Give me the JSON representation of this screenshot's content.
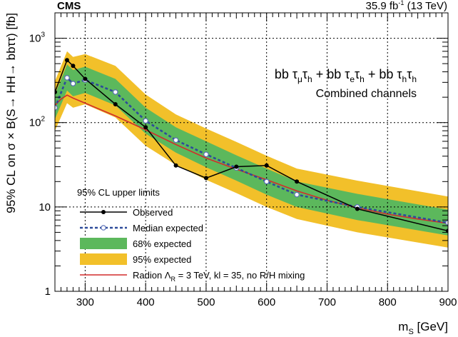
{
  "header": {
    "experiment": "CMS",
    "lumi": "35.9 fb",
    "lumi_sup": "-1",
    "energy": " (13 TeV)"
  },
  "chart_data": {
    "type": "line",
    "xlabel": "m",
    "xlabel_sub": "S",
    "xlabel_unit": " [GeV]",
    "ylabel": "95% CL on σ × B(S→ HH→ bbττ) [fb]",
    "xlim": [
      250,
      900
    ],
    "ylim": [
      1,
      2000
    ],
    "yscale": "log",
    "grid": true,
    "x_ticks": [
      300,
      400,
      500,
      600,
      700,
      800,
      900
    ],
    "y_ticks": [
      {
        "value": 1,
        "base": "1",
        "exp": ""
      },
      {
        "value": 10,
        "base": "10",
        "exp": ""
      },
      {
        "value": 100,
        "base": "10",
        "exp": "2"
      },
      {
        "value": 1000,
        "base": "10",
        "exp": "3"
      }
    ],
    "annotation": {
      "line1_parts": [
        "bb τ",
        "μ",
        "τ",
        "h",
        " + bb τ",
        "e",
        "τ",
        "h",
        " + bb τ",
        "h",
        "τ",
        "h"
      ],
      "line2": "Combined channels"
    },
    "legend_title": "95% CL upper limits",
    "legend_position": "bottom-left",
    "series": [
      {
        "name": "Observed",
        "style": "solid-markers",
        "color": "#000000",
        "x": [
          250,
          270,
          280,
          300,
          350,
          400,
          450,
          500,
          550,
          600,
          650,
          750,
          900
        ],
        "y": [
          230,
          550,
          470,
          330,
          165,
          88,
          31,
          22,
          30,
          31,
          20,
          9.5,
          5.2
        ]
      },
      {
        "name": "Median expected",
        "style": "dashed-open-markers",
        "color": "#2d4b9a",
        "x": [
          250,
          270,
          280,
          300,
          350,
          400,
          450,
          500,
          550,
          600,
          650,
          750,
          900
        ],
        "y": [
          150,
          340,
          290,
          320,
          230,
          105,
          62,
          42,
          29,
          20,
          14,
          10,
          6.5
        ]
      },
      {
        "name": "68% expected",
        "style": "band",
        "color": "#5cb85c",
        "x": [
          250,
          270,
          280,
          300,
          350,
          400,
          450,
          500,
          550,
          600,
          650,
          750,
          900
        ],
        "lower": [
          110,
          240,
          205,
          225,
          160,
          74,
          44,
          29.5,
          20.5,
          14,
          10,
          7,
          4.6
        ],
        "upper": [
          215,
          490,
          420,
          460,
          330,
          150,
          88,
          60,
          41,
          28.5,
          20,
          14.3,
          9.3
        ]
      },
      {
        "name": "95% expected",
        "style": "band",
        "color": "#f2c02a",
        "x": [
          250,
          270,
          280,
          300,
          350,
          400,
          450,
          500,
          550,
          600,
          650,
          750,
          900
        ],
        "lower": [
          80,
          170,
          150,
          165,
          115,
          53,
          31.5,
          21,
          14.6,
          10,
          7.2,
          5,
          3.3
        ],
        "upper": [
          310,
          700,
          600,
          650,
          470,
          215,
          125,
          85,
          59,
          40.5,
          28.5,
          20.5,
          13.3
        ]
      },
      {
        "name": "Radion Λ",
        "name_sub": "R",
        "name_rest": " = 3 TeV, kl = 35, no R/H mixing",
        "style": "solid",
        "color": "#d22c2c",
        "x": [
          250,
          260,
          270,
          280,
          300,
          350,
          400,
          450,
          500,
          550,
          600,
          650,
          700,
          750,
          800,
          850,
          900
        ],
        "y": [
          160,
          190,
          212,
          195,
          170,
          120,
          82,
          55,
          38,
          28,
          21,
          15.5,
          12,
          9.8,
          8.2,
          7.2,
          6.4
        ]
      }
    ]
  }
}
